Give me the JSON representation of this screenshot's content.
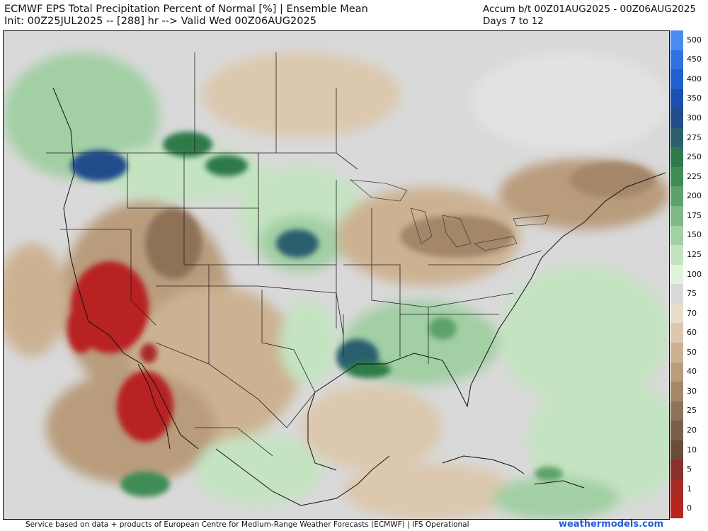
{
  "header": {
    "title_line1": "ECMWF EPS Total Precipitation Percent of Normal [%] | Ensemble Mean",
    "title_line2": "Init: 00Z25JUL2025 -- [288] hr --> Valid Wed 00Z06AUG2025",
    "right_line1": "Accum b/t 00Z01AUG2025 - 00Z06AUG2025",
    "right_line2": "Days 7 to 12"
  },
  "colorbar": {
    "levels": [
      {
        "label": "500",
        "color": "#4a8cf0"
      },
      {
        "label": "450",
        "color": "#2f72e0"
      },
      {
        "label": "400",
        "color": "#1f5fcf"
      },
      {
        "label": "350",
        "color": "#1a4fae"
      },
      {
        "label": "300",
        "color": "#234c8c"
      },
      {
        "label": "275",
        "color": "#2c5e6e"
      },
      {
        "label": "250",
        "color": "#2f7a4a"
      },
      {
        "label": "225",
        "color": "#3f8c55"
      },
      {
        "label": "200",
        "color": "#5da26b"
      },
      {
        "label": "175",
        "color": "#7fb987"
      },
      {
        "label": "150",
        "color": "#a2cfa4"
      },
      {
        "label": "125",
        "color": "#c4e3c1"
      },
      {
        "label": "100",
        "color": "#e2f3dc"
      },
      {
        "label": "75",
        "color": "#d9d9d9"
      },
      {
        "label": "70",
        "color": "#e8dccb"
      },
      {
        "label": "60",
        "color": "#dcc8ae"
      },
      {
        "label": "50",
        "color": "#ccb292"
      },
      {
        "label": "40",
        "color": "#b99c7c"
      },
      {
        "label": "30",
        "color": "#a48669"
      },
      {
        "label": "25",
        "color": "#8e7259"
      },
      {
        "label": "20",
        "color": "#7a5f4b"
      },
      {
        "label": "10",
        "color": "#6a4c3b"
      },
      {
        "label": "5",
        "color": "#8a2f2a"
      },
      {
        "label": "1",
        "color": "#a82a26"
      },
      {
        "label": "0",
        "color": "#b82420"
      }
    ]
  },
  "footer": {
    "credit": "Service based on data + products of European Centre for Medium-Range Weather Forecasts (ECMWF) | IFS Operational",
    "site": "weathermodels.com"
  }
}
